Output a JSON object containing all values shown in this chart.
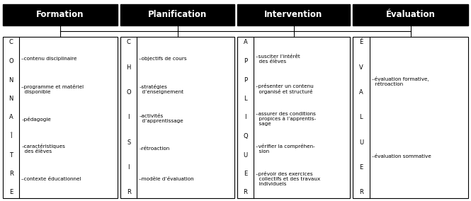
{
  "headers": [
    "Formation",
    "Planification",
    "Intervention",
    "Évaluation"
  ],
  "columns": [
    {
      "letter_lines": [
        "C",
        "O",
        "N",
        "N",
        "A",
        "Î",
        "T",
        "R",
        "E"
      ],
      "items": [
        "–contenu disciplinaire",
        "–programme et matériel\n  disponible",
        "–pédagogie",
        "–caractéristiques\n  des élèves",
        "–contexte éducationnel"
      ]
    },
    {
      "letter_lines": [
        "C",
        "H",
        "O",
        "I",
        "S",
        "I",
        "R"
      ],
      "items": [
        "–objectifs de cours",
        "–stratégies\n  d’enseignement",
        "–activités\n  d’apprentissage",
        "–rétroaction",
        "–modèle d’évaluation"
      ]
    },
    {
      "letter_lines": [
        "A",
        "P",
        "P",
        "L",
        "I",
        "Q",
        "U",
        "E",
        "R"
      ],
      "items": [
        "–susciter l’intérêt\n  des élèves",
        "–présenter un contenu\n  organisé et structuré",
        "–assurer des conditions\n  propices à l’apprentis-\n  sage",
        "–vérifier la compréhen-\n  sion",
        "–prévoir des exercices\n  collectifs et des travaux\n  individuels"
      ]
    },
    {
      "letter_lines": [
        "É",
        "V",
        "A",
        "L",
        "U",
        "E",
        "R"
      ],
      "items": [
        "–évaluation formative,\n  rétroaction",
        "–évaluation sommative"
      ]
    }
  ],
  "figsize": [
    6.65,
    2.84
  ],
  "dpi": 100
}
